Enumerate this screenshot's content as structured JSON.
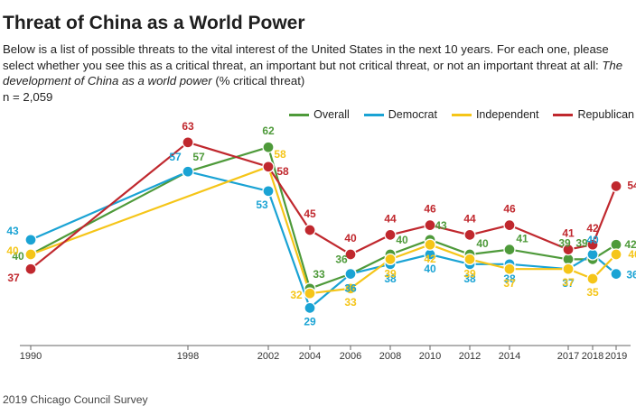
{
  "header": {
    "title": "Threat of China as a World Power",
    "description_prefix": "Below is a list of possible threats to the vital interest of the United States in the next 10 years. For each one, please select whether you see this as a critical threat, an important but not critical threat, or not an important threat at all: ",
    "description_italic": "The development of China as a world power",
    "description_suffix": " (% critical threat)",
    "sample_size": "n = 2,059"
  },
  "footer": {
    "source": "2019 Chicago Council Survey"
  },
  "chart_data": {
    "type": "line",
    "x": [
      1990,
      1998,
      2002,
      2004,
      2006,
      2008,
      2010,
      2012,
      2014,
      2017,
      2018,
      2019
    ],
    "xlabel": "",
    "ylabel": "",
    "ylim": [
      20,
      70
    ],
    "grid": false,
    "legend_position": "top-right",
    "series": [
      {
        "name": "Overall",
        "color": "#4e9a3a",
        "values": [
          40,
          57,
          62,
          33,
          36,
          40,
          43,
          40,
          41,
          39,
          39,
          42
        ]
      },
      {
        "name": "Democrat",
        "color": "#1aa3d4",
        "values": [
          43,
          57,
          53,
          29,
          36,
          38,
          40,
          38,
          38,
          37,
          40,
          36
        ]
      },
      {
        "name": "Independent",
        "color": "#f5c518",
        "values": [
          40,
          null,
          58,
          32,
          33,
          39,
          42,
          39,
          37,
          37,
          35,
          40
        ]
      },
      {
        "name": "Republican",
        "color": "#c0282e",
        "values": [
          37,
          63,
          58,
          45,
          40,
          44,
          46,
          44,
          46,
          41,
          42,
          54
        ]
      }
    ]
  }
}
